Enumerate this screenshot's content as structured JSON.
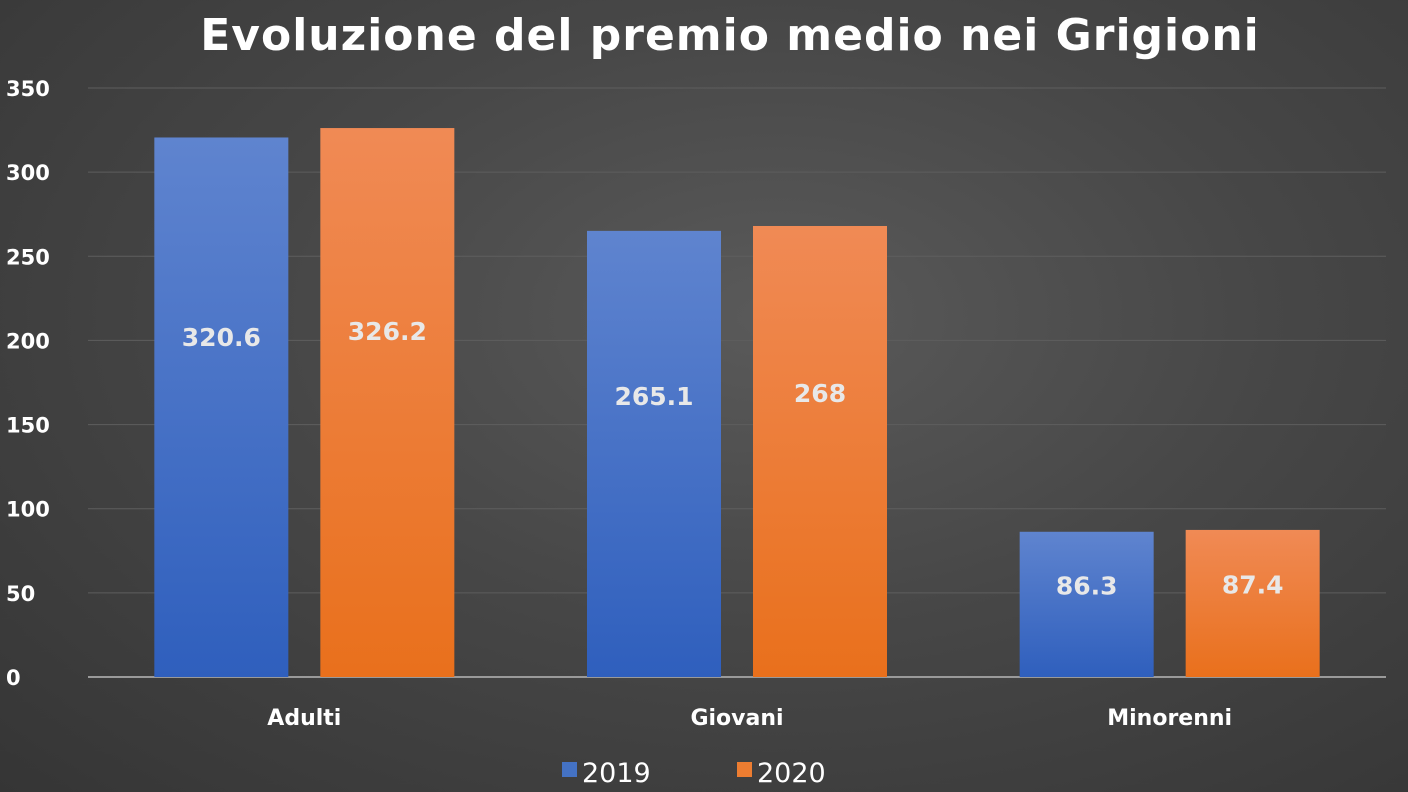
{
  "chart_data": {
    "type": "bar",
    "title": "Evoluzione del premio medio nei Grigioni",
    "categories": [
      "Adulti",
      "Giovani",
      "Minorenni"
    ],
    "series": [
      {
        "name": "2019",
        "values": [
          320.6,
          265.1,
          86.3
        ],
        "labels": [
          "320.6",
          "265.1",
          "86.3"
        ],
        "color": "#4472c4"
      },
      {
        "name": "2020",
        "values": [
          326.2,
          268,
          87.4
        ],
        "labels": [
          "326.2",
          "268",
          "87.4"
        ],
        "color": "#ed7d31"
      }
    ],
    "ylim": [
      0,
      350
    ],
    "yticks": [
      0,
      50,
      100,
      150,
      200,
      250,
      300,
      350
    ],
    "grid": true,
    "legend_position": "bottom",
    "background": "#474747"
  }
}
